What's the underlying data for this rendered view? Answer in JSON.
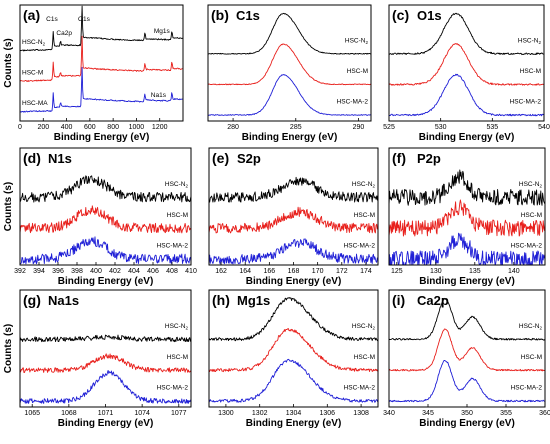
{
  "figure": {
    "colors": {
      "HSC-N2": "#000000",
      "HSC-M": "#e8201c",
      "HSC-MA-2": "#1f1fd6"
    },
    "x_axis_label": "Binding Energy (eV)",
    "y_axis_label": "Counts (s)"
  },
  "chart_data": [
    {
      "id": "a",
      "letter": "(a)",
      "title": "",
      "type": "line",
      "xlim": [
        0,
        1400
      ],
      "xticks": [
        0,
        200,
        400,
        600,
        800,
        1000,
        1200
      ],
      "xtick_labels": [
        "0",
        "200",
        "400",
        "600",
        "800",
        "1000",
        "1200"
      ],
      "xlabel": "Binding Energy (eV)",
      "ylabel": "Counts (s)",
      "series": [
        {
          "name": "HSC-N₂",
          "name_base": "HSC-N",
          "name_sub": "2",
          "color": "#000000",
          "offset": 2,
          "kind": "survey"
        },
        {
          "name": "HSC-M",
          "color": "#e8201c",
          "offset": 1,
          "kind": "survey"
        },
        {
          "name": "HSC-MA",
          "color": "#1f1fd6",
          "offset": 0,
          "kind": "survey"
        }
      ],
      "peaks": [
        {
          "x": 285,
          "h": 0.35
        },
        {
          "x": 347,
          "h": 0.1
        },
        {
          "x": 532,
          "h": 0.8
        },
        {
          "x": 1072,
          "h": 0.18
        },
        {
          "x": 1304,
          "h": 0.2
        }
      ],
      "annotations": [
        {
          "text": "C1s",
          "x": 285
        },
        {
          "text": "Ca2p",
          "x": 347
        },
        {
          "text": "O1s",
          "x": 532
        },
        {
          "text": "Mg1s",
          "x": 1304
        },
        {
          "text": "Na1s",
          "x": 1072
        }
      ]
    },
    {
      "id": "b",
      "letter": "(b)",
      "title": "C1s",
      "type": "line",
      "xlim": [
        278,
        291
      ],
      "xticks": [
        280,
        285,
        290
      ],
      "xtick_labels": [
        "280",
        "285",
        "290"
      ],
      "xlabel": "Binding Energy (eV)",
      "ylabel": "",
      "peaks": [
        {
          "x": 284.0,
          "w": 0.85,
          "h": 1.0,
          "tail": 1.4
        }
      ],
      "noise": 0.01,
      "series": [
        {
          "name": "HSC-N₂",
          "name_base": "HSC-N",
          "name_sub": "2",
          "color": "#000000",
          "offset": 2
        },
        {
          "name": "HSC-M",
          "color": "#e8201c",
          "offset": 1
        },
        {
          "name": "HSC-MA-2",
          "color": "#1f1fd6",
          "offset": 0
        }
      ]
    },
    {
      "id": "c",
      "letter": "(c)",
      "title": "O1s",
      "type": "line",
      "xlim": [
        525,
        540
      ],
      "xticks": [
        525,
        530,
        535,
        540
      ],
      "xtick_labels": [
        "525",
        "530",
        "535",
        "540"
      ],
      "xlabel": "Binding Energy (eV)",
      "ylabel": "",
      "peaks": [
        {
          "x": 531.5,
          "w": 1.2,
          "h": 1.0,
          "tail": 1.0
        }
      ],
      "noise": 0.02,
      "series": [
        {
          "name": "HSC-N₂",
          "name_base": "HSC-N",
          "name_sub": "2",
          "color": "#000000",
          "offset": 2
        },
        {
          "name": "HSC-M",
          "color": "#e8201c",
          "offset": 1
        },
        {
          "name": "HSC-MA-2",
          "color": "#1f1fd6",
          "offset": 0
        }
      ]
    },
    {
      "id": "d",
      "letter": "(d)",
      "title": "N1s",
      "type": "line",
      "xlim": [
        392,
        410
      ],
      "xticks": [
        392,
        394,
        396,
        398,
        400,
        402,
        404,
        406,
        408,
        410
      ],
      "xtick_labels": [
        "392",
        "394",
        "396",
        "398",
        "400",
        "402",
        "404",
        "406",
        "408",
        "410"
      ],
      "xlabel": "Binding Energy (eV)",
      "ylabel": "Counts (s)",
      "peaks": [
        {
          "x": 399.5,
          "w": 1.6,
          "h": 0.45,
          "tail": 1.0
        }
      ],
      "noise": 0.12,
      "series": [
        {
          "name": "HSC-N₂",
          "name_base": "HSC-N",
          "name_sub": "2",
          "color": "#000000",
          "offset": 2
        },
        {
          "name": "HSC-M",
          "color": "#e8201c",
          "offset": 1
        },
        {
          "name": "HSC-MA-2",
          "color": "#1f1fd6",
          "offset": 0
        }
      ]
    },
    {
      "id": "e",
      "letter": "(e)",
      "title": "S2p",
      "type": "line",
      "xlim": [
        161,
        175
      ],
      "xticks": [
        162,
        164,
        166,
        168,
        170,
        172,
        174
      ],
      "xtick_labels": [
        "162",
        "164",
        "166",
        "168",
        "170",
        "172",
        "174"
      ],
      "xlabel": "Binding Energy (eV)",
      "ylabel": "",
      "peaks": [
        {
          "x": 168.5,
          "w": 1.4,
          "h": 0.4,
          "tail": 1.0
        }
      ],
      "noise": 0.12,
      "series": [
        {
          "name": "HSC-N₂",
          "name_base": "HSC-N",
          "name_sub": "2",
          "color": "#000000",
          "offset": 2
        },
        {
          "name": "HSC-M",
          "color": "#e8201c",
          "offset": 1
        },
        {
          "name": "HSC-MA-2",
          "color": "#1f1fd6",
          "offset": 0
        }
      ]
    },
    {
      "id": "f",
      "letter": "(f)",
      "title": "P2p",
      "type": "line",
      "xlim": [
        124,
        144
      ],
      "xticks": [
        125,
        130,
        135,
        140
      ],
      "xtick_labels": [
        "125",
        "130",
        "135",
        "140"
      ],
      "xlabel": "Binding Energy (eV)",
      "ylabel": "",
      "peaks": [
        {
          "x": 133.0,
          "w": 1.2,
          "h": 0.5,
          "tail": 1.0
        }
      ],
      "noise": 0.2,
      "series": [
        {
          "name": "HSC-N₂",
          "name_base": "HSC-N",
          "name_sub": "2",
          "color": "#000000",
          "offset": 2
        },
        {
          "name": "HSC-M",
          "color": "#e8201c",
          "offset": 1
        },
        {
          "name": "HSC-MA-2",
          "color": "#1f1fd6",
          "offset": 0
        }
      ]
    },
    {
      "id": "g",
      "letter": "(g)",
      "title": "Na1s",
      "type": "line",
      "xlim": [
        1064,
        1078
      ],
      "xticks": [
        1065,
        1068,
        1071,
        1074,
        1077
      ],
      "xtick_labels": [
        "1065",
        "1068",
        "1071",
        "1074",
        "1077"
      ],
      "xlabel": "Binding Energy (eV)",
      "ylabel": "Counts (s)",
      "peaks": [
        {
          "x": 1071.3,
          "w": 1.2,
          "h": 0.7,
          "tail": 1.0
        }
      ],
      "noise": 0.06,
      "series": [
        {
          "name": "HSC-N₂",
          "name_base": "HSC-N",
          "name_sub": "2",
          "color": "#000000",
          "offset": 2,
          "scale": 0.08
        },
        {
          "name": "HSC-M",
          "color": "#e8201c",
          "offset": 1,
          "scale": 0.5
        },
        {
          "name": "HSC-MA-2",
          "color": "#1f1fd6",
          "offset": 0,
          "scale": 1.0
        }
      ]
    },
    {
      "id": "h",
      "letter": "(h)",
      "title": "Mg1s",
      "type": "line",
      "xlim": [
        1299,
        1309
      ],
      "xticks": [
        1300,
        1302,
        1304,
        1306,
        1308
      ],
      "xtick_labels": [
        "1300",
        "1302",
        "1304",
        "1306",
        "1308"
      ],
      "xlabel": "Binding Energy (eV)",
      "ylabel": "",
      "peaks": [
        {
          "x": 1303.7,
          "w": 0.9,
          "h": 1.0,
          "tail": 1.4
        }
      ],
      "noise": 0.04,
      "series": [
        {
          "name": "HSC-N₂",
          "name_base": "HSC-N",
          "name_sub": "2",
          "color": "#000000",
          "offset": 2
        },
        {
          "name": "HSC-M",
          "color": "#e8201c",
          "offset": 1
        },
        {
          "name": "HSC-MA-2",
          "color": "#1f1fd6",
          "offset": 0
        }
      ]
    },
    {
      "id": "i",
      "letter": "(i)",
      "title": "Ca2p",
      "type": "line",
      "xlim": [
        340,
        360
      ],
      "xticks": [
        340,
        345,
        350,
        355,
        360
      ],
      "xtick_labels": [
        "340",
        "345",
        "350",
        "355",
        "360"
      ],
      "xlabel": "Binding Energy (eV)",
      "ylabel": "",
      "peaks": [
        {
          "x": 347.2,
          "w": 0.9,
          "h": 1.0,
          "tail": 1.0
        },
        {
          "x": 350.7,
          "w": 1.0,
          "h": 0.55,
          "tail": 1.0
        }
      ],
      "noise": 0.02,
      "series": [
        {
          "name": "HSC-N₂",
          "name_base": "HSC-N",
          "name_sub": "2",
          "color": "#000000",
          "offset": 2
        },
        {
          "name": "HSC-M",
          "color": "#e8201c",
          "offset": 1
        },
        {
          "name": "HSC-MA-2",
          "color": "#1f1fd6",
          "offset": 0
        }
      ]
    }
  ]
}
